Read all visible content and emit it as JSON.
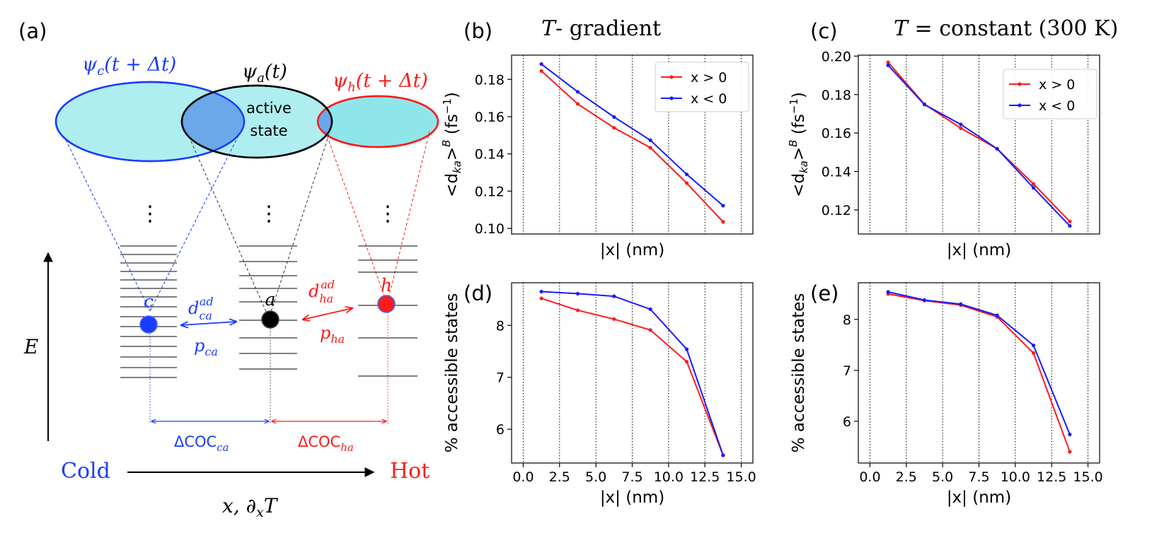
{
  "panel_labels": {
    "a": "(a)",
    "b": "(b)",
    "c": "(c)",
    "d": "(d)",
    "e": "(e)"
  },
  "titles": {
    "b_italic": "T",
    "b_rest": "- gradient",
    "c_italic": "T",
    "c_rest": " = constant (300 K)"
  },
  "schematic": {
    "psi_c": "ψ_c(t + Δt)",
    "psi_a": "ψ_a(t)",
    "psi_h": "ψ_h(t + Δt)",
    "active_line1": "active",
    "active_line2": "state",
    "dots": "⋮",
    "c": "c",
    "a": "a",
    "h": "h",
    "d_ca": "d_ca^ad",
    "p_ca": "p_ca",
    "d_ha": "d_ha^ad",
    "p_ha": "p_ha",
    "E": "E",
    "dcoc_ca": "ΔCOC_ca",
    "dcoc_ha": "ΔCOC_ha",
    "cold": "Cold",
    "hot": "Hot",
    "xaxis": "x, ∂_x T",
    "colors": {
      "blue": "#1a3cff",
      "red": "#ff1a1a",
      "cyan": "#aeeef0",
      "cyan_h": "#8fe6ea",
      "overlap": "#6aa8ea"
    }
  },
  "chart_data": [
    {
      "id": "b",
      "type": "line",
      "xlabel": "|x| (nm)",
      "ylabel": "<d_ka>^B (fs^-1)",
      "xlim": [
        -0.8,
        15.8
      ],
      "ylim": [
        0.097,
        0.193
      ],
      "xticks": [],
      "yticks": [
        0.1,
        0.12,
        0.14,
        0.16,
        0.18
      ],
      "ytick_labels": [
        "0.10",
        "0.12",
        "0.14",
        "0.16",
        "0.18"
      ],
      "vlines": [
        0,
        2.5,
        5,
        7.5,
        10,
        12.5,
        15
      ],
      "legend": [
        "x > 0",
        "x < 0"
      ],
      "series": [
        {
          "name": "x > 0",
          "color": "#ff1a1a",
          "x": [
            1.25,
            3.75,
            6.25,
            8.75,
            11.25,
            13.75
          ],
          "y": [
            0.1845,
            0.1668,
            0.154,
            0.1433,
            0.1243,
            0.1035
          ]
        },
        {
          "name": "x < 0",
          "color": "#1a1aff",
          "x": [
            1.25,
            3.75,
            6.25,
            8.75,
            11.25,
            13.75
          ],
          "y": [
            0.1882,
            0.1733,
            0.1598,
            0.1473,
            0.129,
            0.1122
          ]
        }
      ]
    },
    {
      "id": "c",
      "type": "line",
      "xlabel": "|x| (nm)",
      "ylabel": "<d_ka>^B (fs^-1)",
      "xlim": [
        -0.8,
        15.8
      ],
      "ylim": [
        0.1075,
        0.2005
      ],
      "xticks": [],
      "yticks": [
        0.12,
        0.14,
        0.16,
        0.18,
        0.2
      ],
      "ytick_labels": [
        "0.12",
        "0.14",
        "0.16",
        "0.18",
        "0.20"
      ],
      "vlines": [
        0,
        2.5,
        5,
        7.5,
        10,
        12.5,
        15
      ],
      "legend": [
        "x > 0",
        "x < 0"
      ],
      "series": [
        {
          "name": "x > 0",
          "color": "#ff1a1a",
          "x": [
            1.25,
            3.75,
            6.25,
            8.75,
            11.25,
            13.75
          ],
          "y": [
            0.1968,
            0.175,
            0.1625,
            0.1518,
            0.1335,
            0.114
          ]
        },
        {
          "name": "x < 0",
          "color": "#1a1aff",
          "x": [
            1.25,
            3.75,
            6.25,
            8.75,
            11.25,
            13.75
          ],
          "y": [
            0.1952,
            0.1748,
            0.1645,
            0.1518,
            0.1315,
            0.1117
          ]
        }
      ]
    },
    {
      "id": "d",
      "type": "line",
      "xlabel": "|x| (nm)",
      "ylabel": "% accessible states",
      "xlim": [
        -0.8,
        15.8
      ],
      "ylim": [
        5.35,
        8.82
      ],
      "xticks": [
        0,
        2.5,
        5,
        7.5,
        10,
        12.5,
        15
      ],
      "xtick_labels": [
        "0.0",
        "2.5",
        "5.0",
        "7.5",
        "10.0",
        "12.5",
        "15.0"
      ],
      "yticks": [
        6,
        7,
        8
      ],
      "ytick_labels": [
        "6",
        "7",
        "8"
      ],
      "vlines": [
        0,
        2.5,
        5,
        7.5,
        10,
        12.5,
        15
      ],
      "series": [
        {
          "name": "x > 0",
          "color": "#ff1a1a",
          "x": [
            1.25,
            3.75,
            6.25,
            8.75,
            11.25,
            13.75
          ],
          "y": [
            8.52,
            8.29,
            8.12,
            7.91,
            7.3,
            5.5
          ]
        },
        {
          "name": "x < 0",
          "color": "#1a1aff",
          "x": [
            1.25,
            3.75,
            6.25,
            8.75,
            11.25,
            13.75
          ],
          "y": [
            8.65,
            8.61,
            8.56,
            8.31,
            7.54,
            5.5
          ]
        }
      ]
    },
    {
      "id": "e",
      "type": "line",
      "xlabel": "|x| (nm)",
      "ylabel": "% accessible states",
      "xlim": [
        -0.8,
        15.8
      ],
      "ylim": [
        5.18,
        8.72
      ],
      "xticks": [
        0,
        2.5,
        5,
        7.5,
        10,
        12.5,
        15
      ],
      "xtick_labels": [
        "0.0",
        "2.5",
        "5.0",
        "7.5",
        "10.0",
        "12.5",
        "15.0"
      ],
      "yticks": [
        6,
        7,
        8
      ],
      "ytick_labels": [
        "6",
        "7",
        "8"
      ],
      "vlines": [
        0,
        2.5,
        5,
        7.5,
        10,
        12.5,
        15
      ],
      "series": [
        {
          "name": "x > 0",
          "color": "#ff1a1a",
          "x": [
            1.25,
            3.75,
            6.25,
            8.75,
            11.25,
            13.75
          ],
          "y": [
            8.5,
            8.37,
            8.28,
            8.05,
            7.34,
            5.4
          ]
        },
        {
          "name": "x < 0",
          "color": "#1a1aff",
          "x": [
            1.25,
            3.75,
            6.25,
            8.75,
            11.25,
            13.75
          ],
          "y": [
            8.54,
            8.38,
            8.3,
            8.08,
            7.49,
            5.74
          ]
        }
      ]
    }
  ]
}
